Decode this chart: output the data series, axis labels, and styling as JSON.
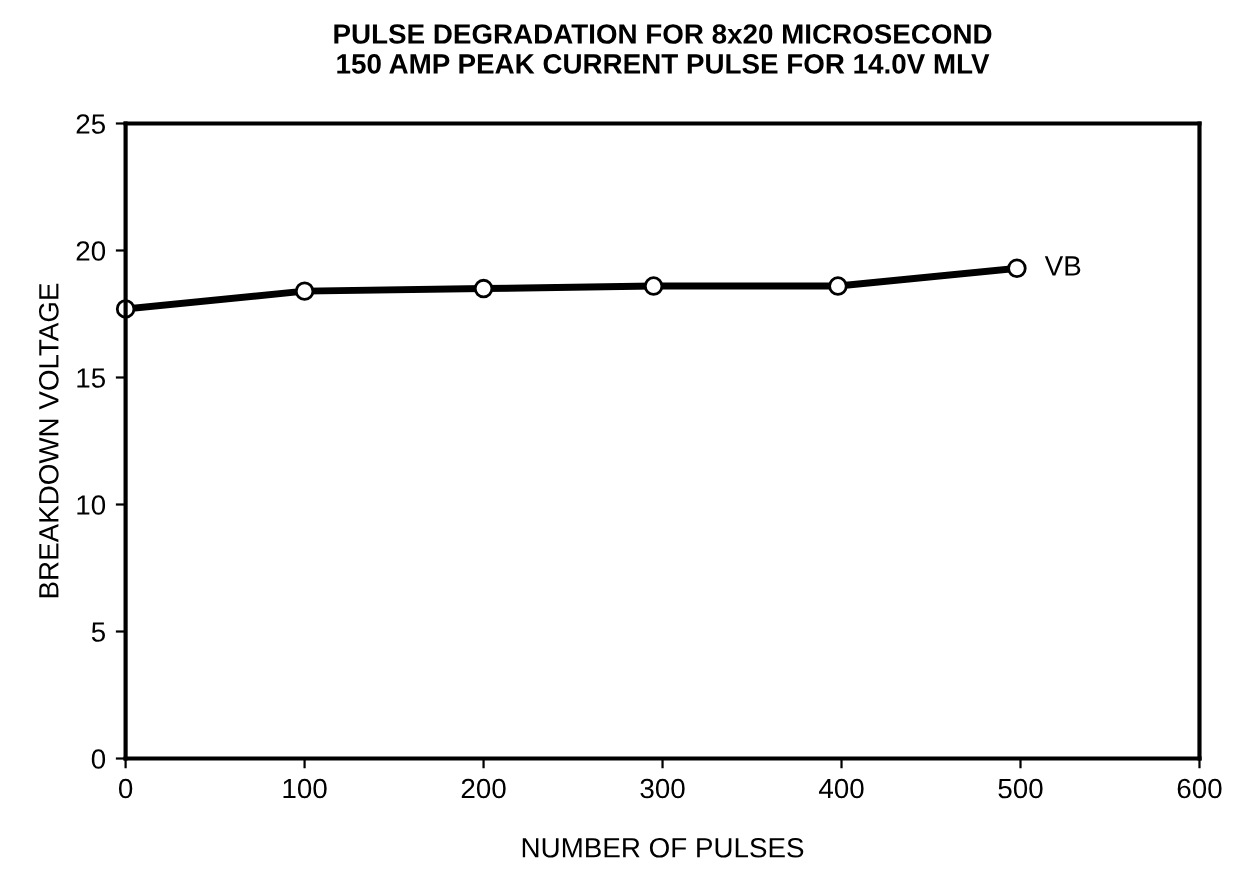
{
  "chart_data": {
    "type": "line",
    "title": "PULSE DEGRADATION FOR 8x20 MICROSECOND\n150 AMP PEAK CURRENT PULSE FOR 14.0V MLV",
    "xlabel": "NUMBER OF PULSES",
    "ylabel": "BREAKDOWN VOLTAGE",
    "x": [
      0,
      100,
      200,
      295,
      398,
      498
    ],
    "series": [
      {
        "name": "VB",
        "color": "#000000",
        "values": [
          17.7,
          18.4,
          18.5,
          18.6,
          18.6,
          19.3
        ]
      }
    ],
    "xlim": [
      0,
      600
    ],
    "ylim": [
      0,
      25
    ],
    "xticks": [
      0,
      100,
      200,
      300,
      400,
      500,
      600
    ],
    "yticks": [
      0,
      5,
      10,
      15,
      20,
      25
    ],
    "grid": false,
    "legend": false,
    "marker": "circle",
    "line_style": "solid"
  }
}
